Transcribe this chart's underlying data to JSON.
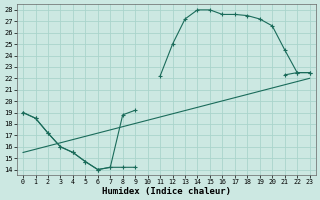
{
  "xlabel": "Humidex (Indice chaleur)",
  "bg_color": "#cce8e2",
  "grid_color": "#aad4cc",
  "line_color": "#1a6b5a",
  "xlim": [
    -0.5,
    23.5
  ],
  "ylim": [
    13.5,
    28.5
  ],
  "xticks": [
    0,
    1,
    2,
    3,
    4,
    5,
    6,
    7,
    8,
    9,
    10,
    11,
    12,
    13,
    14,
    15,
    16,
    17,
    18,
    19,
    20,
    21,
    22,
    23
  ],
  "yticks": [
    14,
    15,
    16,
    17,
    18,
    19,
    20,
    21,
    22,
    23,
    24,
    25,
    26,
    27,
    28
  ],
  "curve1_x": [
    0,
    1,
    2,
    3,
    4,
    5,
    6,
    7,
    8,
    9,
    11,
    12,
    13,
    14,
    15,
    16,
    17,
    18,
    19,
    20,
    21,
    22,
    23
  ],
  "curve1_y": [
    19,
    18.5,
    17.2,
    16.0,
    15.5,
    14.7,
    14.0,
    14.2,
    18.8,
    19.2,
    22.2,
    25.0,
    27.2,
    28.0,
    28.0,
    27.6,
    27.6,
    27.5,
    27.2,
    26.6,
    24.5,
    22.5,
    22.5
  ],
  "curve2_x": [
    0,
    1,
    2,
    3,
    4,
    5,
    6,
    7,
    8,
    9,
    21,
    22,
    23
  ],
  "curve2_y": [
    19,
    18.5,
    17.2,
    16.0,
    15.5,
    14.7,
    14.0,
    14.2,
    14.2,
    14.2,
    22.3,
    22.5,
    22.5
  ],
  "curve3_x": [
    0,
    23
  ],
  "curve3_y": [
    15.5,
    22.0
  ]
}
